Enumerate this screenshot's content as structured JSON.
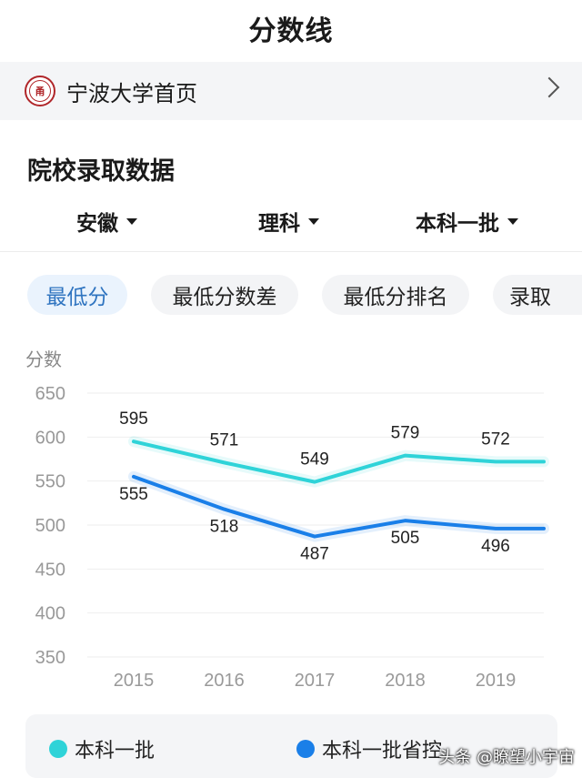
{
  "header": {
    "title": "分数线"
  },
  "banner": {
    "logo_text": "甬",
    "title": "宁波大学首页"
  },
  "section": {
    "title": "院校录取数据"
  },
  "filters": [
    {
      "label": "安徽"
    },
    {
      "label": "理科"
    },
    {
      "label": "本科一批"
    }
  ],
  "tabs": [
    {
      "label": "最低分",
      "active": true
    },
    {
      "label": "最低分数差",
      "active": false
    },
    {
      "label": "最低分排名",
      "active": false
    },
    {
      "label": "录取",
      "active": false
    }
  ],
  "colors": {
    "series1": "#2fd3d8",
    "series2": "#1a7fe8",
    "active_tab": "#2f74c0"
  },
  "chart_data": {
    "type": "line",
    "ylabel": "分数",
    "ylim": [
      350,
      650
    ],
    "yticks": [
      650,
      600,
      550,
      500,
      450,
      400,
      350
    ],
    "categories": [
      "2015",
      "2016",
      "2017",
      "2018",
      "2019"
    ],
    "grid": true,
    "legend_position": "bottom",
    "series": [
      {
        "name": "本科一批",
        "values": [
          595,
          571,
          549,
          579,
          572
        ],
        "color": "#2fd3d8"
      },
      {
        "name": "本科一批省控",
        "values": [
          555,
          518,
          487,
          505,
          496
        ],
        "color": "#1a7fe8"
      }
    ]
  },
  "watermark": "头条 @瞭望小宇宙"
}
